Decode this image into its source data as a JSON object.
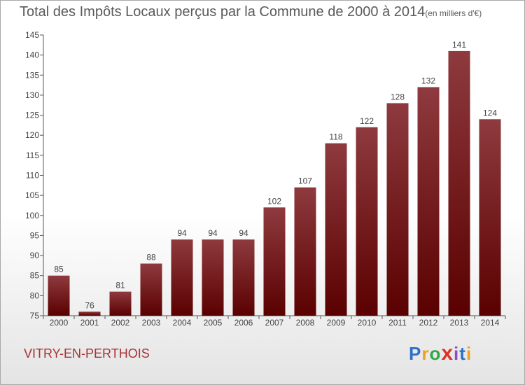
{
  "title": "Total des Impôts Locaux perçus par la Commune de 2000 à 2014",
  "title_unit": "(en milliers d'€)",
  "commune": "VITRY-EN-PERTHOIS",
  "logo": {
    "letters": [
      "P",
      "r",
      "o",
      "x",
      "i",
      "t",
      "i"
    ],
    "colors": [
      "#2f6fc8",
      "#f0a020",
      "#2fa84a",
      "#e03020",
      "#8a4fc0",
      "#2f6fc8",
      "#f0a020"
    ]
  },
  "chart_data": {
    "type": "bar",
    "categories": [
      "2000",
      "2001",
      "2002",
      "2003",
      "2004",
      "2005",
      "2006",
      "2007",
      "2008",
      "2009",
      "2010",
      "2011",
      "2012",
      "2013",
      "2014"
    ],
    "values": [
      85,
      76,
      81,
      88,
      94,
      94,
      94,
      102,
      107,
      118,
      122,
      128,
      132,
      141,
      124
    ],
    "ylim": [
      75,
      145
    ],
    "yticks": [
      75,
      80,
      85,
      90,
      95,
      100,
      105,
      110,
      115,
      120,
      125,
      130,
      135,
      140,
      145
    ],
    "grid": false,
    "bar_color": "#8b1a1a",
    "xlabel": "",
    "ylabel": ""
  }
}
